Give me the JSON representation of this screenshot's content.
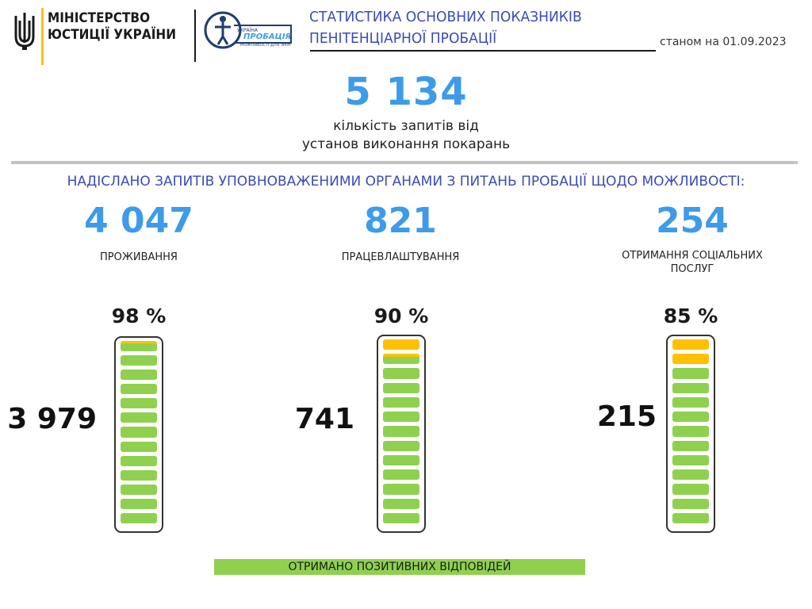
{
  "header": {
    "ministry_line1": "МІНІСТЕРСТВО",
    "ministry_line2": "ЮСТИЦІЇ УКРАЇНИ",
    "probation_logo_small": "УКРАЇНА",
    "probation_logo_main": "ПРОБАЦІЯ",
    "probation_logo_sub": "МОЖЛИВОСТІ ДЛЯ ЗМІН",
    "title_line1": "СТАТИСТИКА ОСНОВНИХ ПОКАЗНИКІВ",
    "title_line2": "ПЕНІТЕНЦІАРНОЇ ПРОБАЦІЇ",
    "as_of": "станом на 01.09.2023"
  },
  "total": {
    "value": "5 134",
    "label_line1": "кількість запитів від",
    "label_line2": "установ виконання покарань"
  },
  "subtitle": "НАДІСЛАНО ЗАПИТІВ УПОВНОВАЖЕНИМИ ОРГАНАМИ З ПИТАНЬ ПРОБАЦІЇ  ЩОДО МОЖЛИВОСТІ:",
  "legend_label": "ОТРИМАНО  ПОЗИТИВНИХ ВІДПОВІДЕЙ",
  "colors": {
    "accent_blue": "#3d9be9",
    "title_blue": "#3b4bb5",
    "positive_green": "#8fd14f",
    "remaining_yellow": "#ffc000",
    "separator_gray": "#c3c3c3"
  },
  "chart_data": {
    "type": "bar",
    "title": "НАДІСЛАНО ЗАПИТІВ УПОВНОВАЖЕНИМИ ОРГАНАМИ З ПИТАНЬ ПРОБАЦІЇ  ЩОДО МОЖЛИВОСТІ:",
    "categories": [
      {
        "id": "housing",
        "label_lines": [
          "ПРОЖИВАННЯ"
        ],
        "requests": 4047,
        "requests_display": "4 047",
        "positive": 3979,
        "positive_display": "3 979",
        "percent": 98,
        "percent_display": "98 %"
      },
      {
        "id": "employment",
        "label_lines": [
          "ПРАЦЕВЛАШТУВАННЯ"
        ],
        "requests": 821,
        "requests_display": "821",
        "positive": 741,
        "positive_display": "741",
        "percent": 90,
        "percent_display": "90 %"
      },
      {
        "id": "social",
        "label_lines": [
          "ОТРИМАННЯ  СОЦІАЛЬНИХ",
          "ПОСЛУГ"
        ],
        "requests": 254,
        "requests_display": "254",
        "positive": 215,
        "positive_display": "215",
        "percent": 85,
        "percent_display": "85 %"
      }
    ],
    "legend": [
      "ОТРИМАНО  ПОЗИТИВНИХ ВІДПОВІДЕЙ"
    ]
  }
}
